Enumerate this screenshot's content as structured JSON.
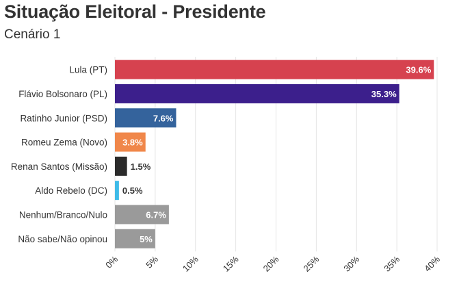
{
  "chart_data": {
    "type": "bar",
    "orientation": "horizontal",
    "title": "Situação Eleitoral - Presidente",
    "subtitle": "Cenário 1",
    "categories": [
      "Lula (PT)",
      "Flávio Bolsonaro (PL)",
      "Ratinho Junior (PSD)",
      "Romeu Zema (Novo)",
      "Renan Santos (Missão)",
      "Aldo Rebelo (DC)",
      "Nenhum/Branco/Nulo",
      "Não sabe/Não opinou"
    ],
    "values": [
      39.6,
      35.3,
      7.6,
      3.8,
      1.5,
      0.5,
      6.7,
      5
    ],
    "value_labels": [
      "39.6%",
      "35.3%",
      "7.6%",
      "3.8%",
      "1.5%",
      "0.5%",
      "6.7%",
      "5%"
    ],
    "colors": [
      "#d6424f",
      "#3c1f8c",
      "#34639c",
      "#f0874a",
      "#2b2b2b",
      "#3fbbe8",
      "#9a9a9a",
      "#9a9a9a"
    ],
    "xlim": [
      0,
      40
    ],
    "xticks": [
      0,
      5,
      10,
      15,
      20,
      25,
      30,
      35,
      40
    ],
    "xtick_labels": [
      "0%",
      "5%",
      "10%",
      "15%",
      "20%",
      "25%",
      "30%",
      "35%",
      "40%"
    ],
    "grid": true,
    "legend": "none"
  }
}
